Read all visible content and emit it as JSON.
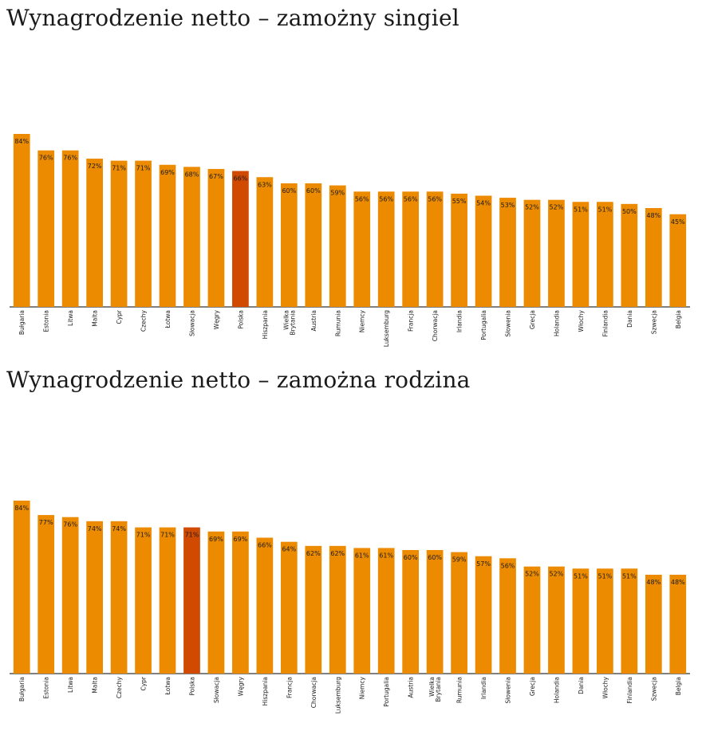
{
  "colors": {
    "bar": "#ED8B00",
    "highlight": "#D04A02",
    "axis": "#000000"
  },
  "chart_data": [
    {
      "type": "bar",
      "title": "Wynagrodzenie netto – zamożny singiel",
      "unit": "%",
      "highlight": "Polska",
      "ylim": [
        0,
        84
      ],
      "categories": [
        "Bułgaria",
        "Estonia",
        "Litwa",
        "Malta",
        "Cypr",
        "Czechy",
        "Łotwa",
        "Słowacja",
        "Węgry",
        "Polska",
        "Hiszpania",
        "Wielka Brytania",
        "Austria",
        "Rumunia",
        "Niemcy",
        "Luksemburg",
        "Francja",
        "Chorwacja",
        "Irlandia",
        "Portugalia",
        "Słowenia",
        "Grecja",
        "Holandia",
        "Włochy",
        "Finlandia",
        "Dania",
        "Szwecja",
        "Belgia"
      ],
      "values": [
        84,
        76,
        76,
        72,
        71,
        71,
        69,
        68,
        67,
        66,
        63,
        60,
        60,
        59,
        56,
        56,
        56,
        56,
        55,
        54,
        53,
        52,
        52,
        51,
        51,
        50,
        48,
        45
      ]
    },
    {
      "type": "bar",
      "title": "Wynagrodzenie netto – zamożna rodzina",
      "unit": "%",
      "highlight": "Polska",
      "ylim": [
        0,
        84
      ],
      "categories": [
        "Bułgaria",
        "Estonia",
        "Litwa",
        "Malta",
        "Czechy",
        "Cypr",
        "Łotwa",
        "Polska",
        "Słowacja",
        "Węgry",
        "Hiszpania",
        "Francja",
        "Chorwacja",
        "Luksemburg",
        "Niemcy",
        "Portugalia",
        "Austria",
        "Wielka Brytania",
        "Rumunia",
        "Irlandia",
        "Słowenia",
        "Grecja",
        "Holandia",
        "Dania",
        "Włochy",
        "Finlandia",
        "Szwecja",
        "Belgia"
      ],
      "values": [
        84,
        77,
        76,
        74,
        74,
        71,
        71,
        71,
        69,
        69,
        66,
        64,
        62,
        62,
        61,
        61,
        60,
        60,
        59,
        57,
        56,
        52,
        52,
        51,
        51,
        51,
        48,
        48
      ]
    }
  ]
}
